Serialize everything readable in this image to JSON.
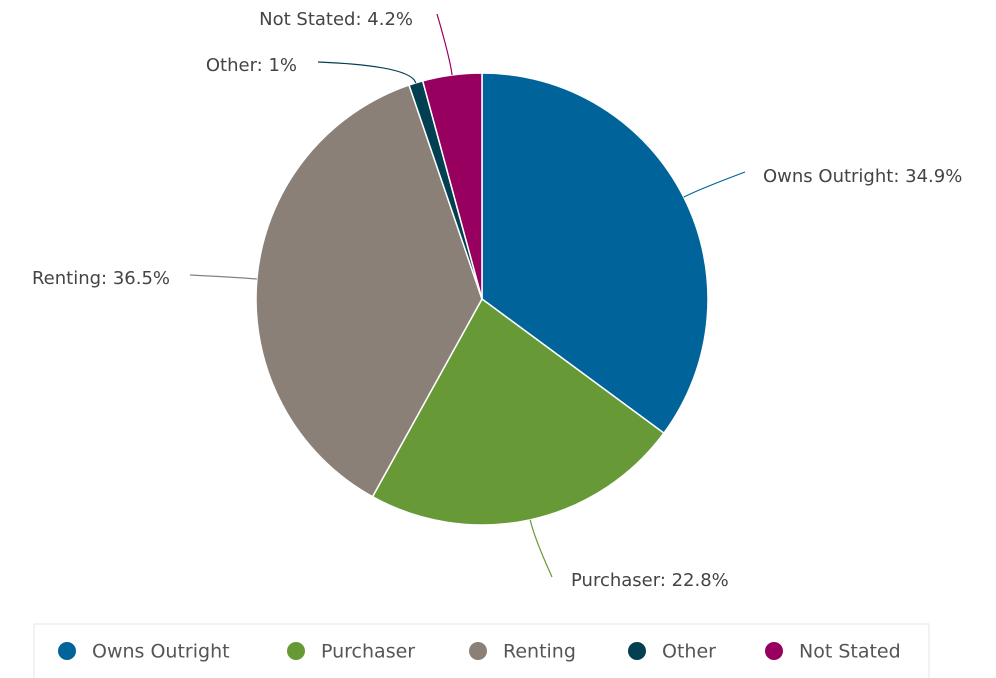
{
  "chart_data": {
    "type": "pie",
    "categories": [
      "Owns Outright",
      "Purchaser",
      "Renting",
      "Other",
      "Not Stated"
    ],
    "values": [
      34.9,
      22.8,
      36.5,
      1,
      4.2
    ],
    "value_labels": [
      "Owns Outright: 34.9%",
      "Purchaser: 22.8%",
      "Renting: 36.5%",
      "Other: 1%",
      "Not Stated: 4.2%"
    ],
    "colors": [
      "#00649a",
      "#679a37",
      "#8a8077",
      "#013f51",
      "#97005f"
    ],
    "legend": "bottom"
  }
}
